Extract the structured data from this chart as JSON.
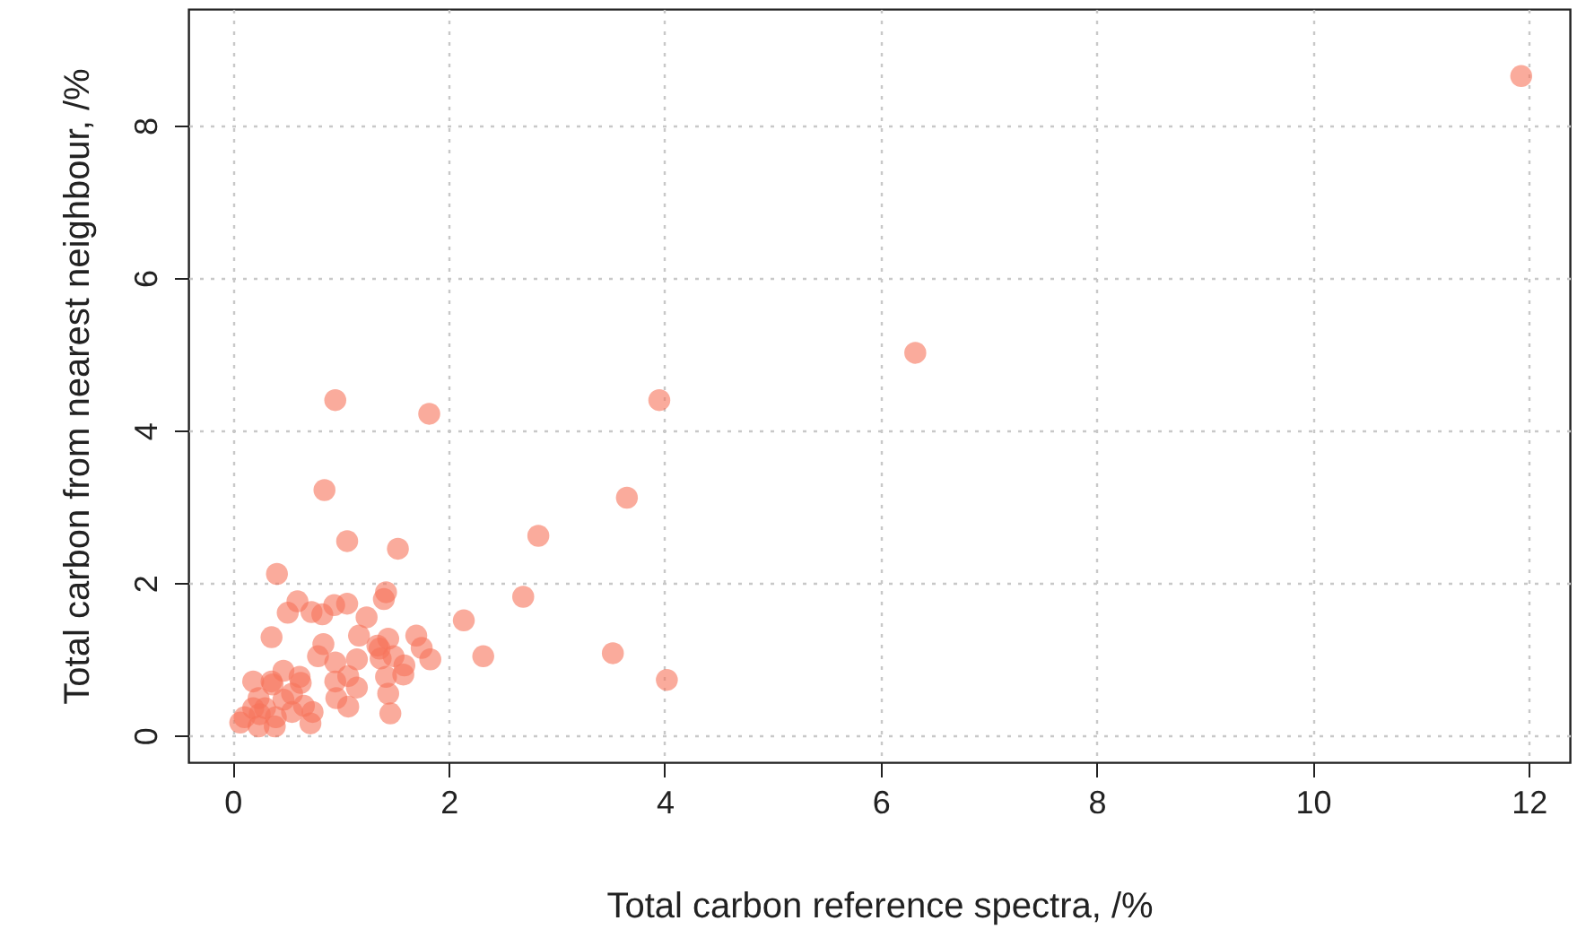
{
  "chart_data": {
    "type": "scatter",
    "xlabel": "Total carbon reference spectra, /%",
    "ylabel": "Total carbon from nearest neighbour, /%",
    "xlim": [
      -0.41,
      12.38
    ],
    "ylim": [
      -0.35,
      9.53
    ],
    "xticks": [
      0,
      2,
      4,
      6,
      8,
      10,
      12
    ],
    "yticks": [
      0,
      2,
      4,
      6,
      8
    ],
    "grid": true,
    "marker": "circle",
    "series": [
      {
        "color": "#f7735a",
        "x": [
          11.93,
          6.32,
          3.95,
          0.95,
          1.82,
          0.85,
          3.65,
          2.83,
          1.06,
          1.53,
          0.41,
          2.69,
          2.14,
          3.52,
          2.32,
          4.02,
          1.42,
          1.4,
          0.6,
          0.51,
          0.73,
          0.83,
          0.94,
          1.06,
          1.24,
          0.36,
          1.17,
          0.84,
          1.44,
          1.34,
          1.36,
          1.7,
          1.75,
          1.83,
          0.79,
          0.95,
          1.15,
          1.37,
          1.49,
          1.59,
          1.42,
          1.58,
          0.47,
          0.19,
          0.36,
          0.37,
          0.62,
          0.63,
          0.95,
          1.07,
          1.15,
          0.96,
          1.07,
          1.44,
          1.46,
          0.55,
          0.47,
          0.24,
          0.3,
          0.66,
          0.74,
          0.72,
          0.07,
          0.11,
          0.24,
          0.25,
          0.39,
          0.4,
          0.19,
          0.55
        ],
        "values": [
          8.65,
          5.02,
          4.4,
          4.4,
          4.22,
          3.22,
          3.12,
          2.62,
          2.55,
          2.45,
          2.12,
          1.82,
          1.51,
          1.08,
          1.04,
          0.73,
          1.88,
          1.79,
          1.76,
          1.61,
          1.62,
          1.59,
          1.71,
          1.73,
          1.55,
          1.29,
          1.31,
          1.2,
          1.27,
          1.18,
          1.14,
          1.31,
          1.15,
          1.0,
          1.04,
          0.96,
          1.0,
          1.01,
          1.04,
          0.92,
          0.77,
          0.8,
          0.85,
          0.71,
          0.71,
          0.67,
          0.77,
          0.69,
          0.71,
          0.78,
          0.63,
          0.49,
          0.38,
          0.55,
          0.29,
          0.55,
          0.47,
          0.49,
          0.36,
          0.39,
          0.31,
          0.16,
          0.17,
          0.24,
          0.12,
          0.28,
          0.12,
          0.24,
          0.36,
          0.31
        ]
      }
    ]
  }
}
